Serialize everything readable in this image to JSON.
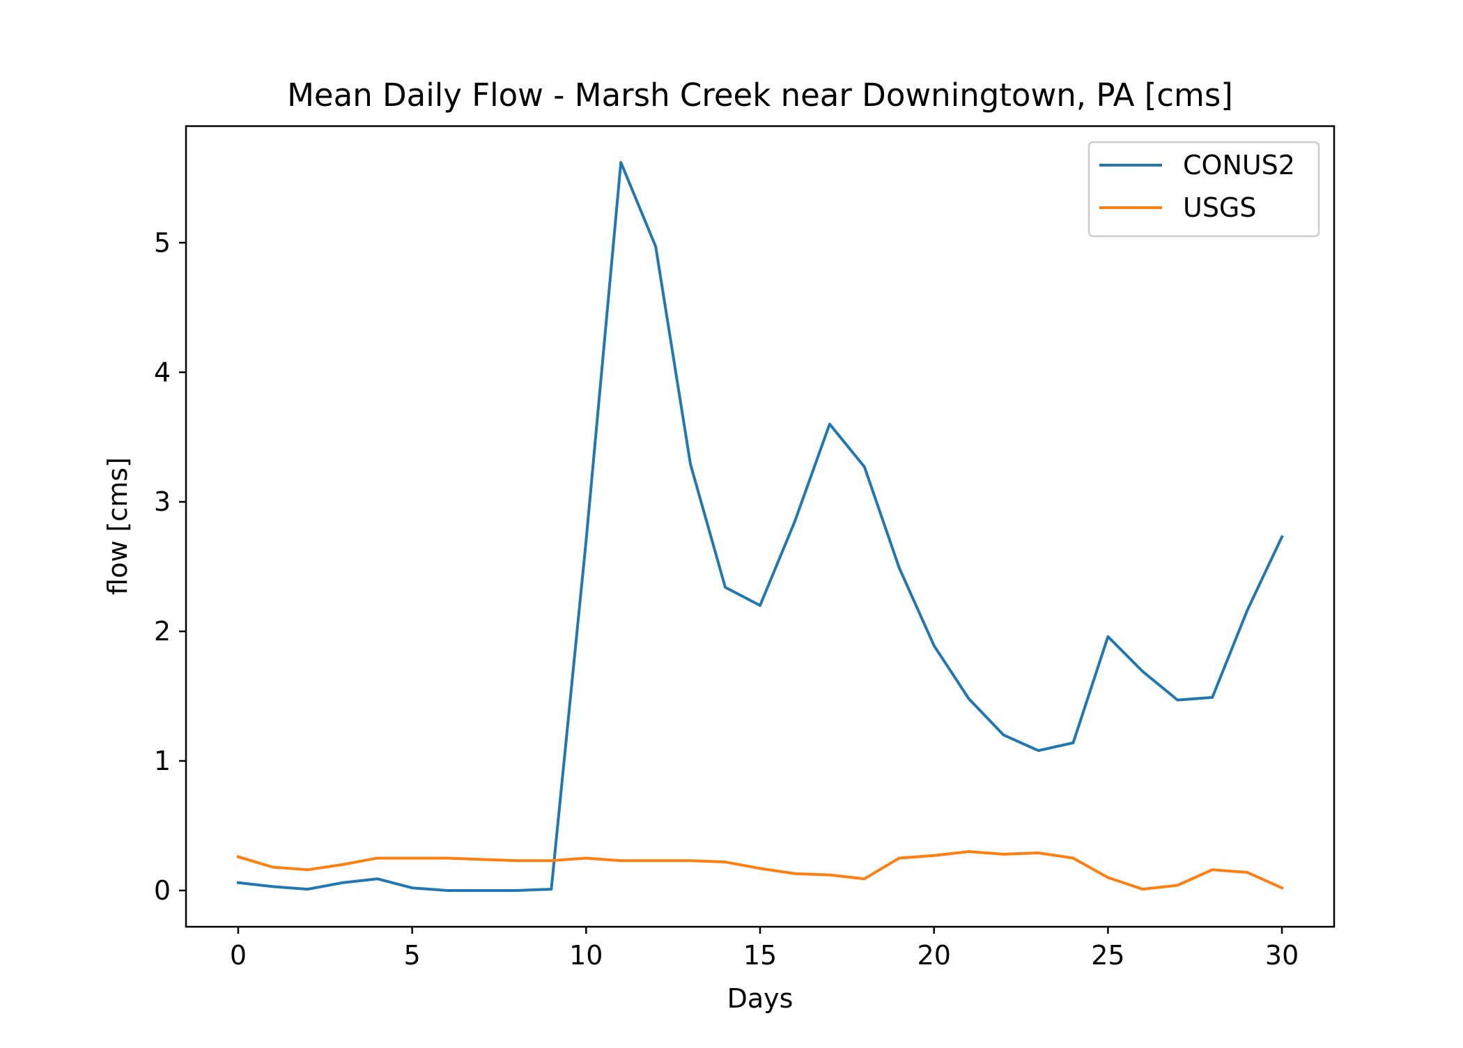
{
  "chart_data": {
    "type": "line",
    "title": "Mean Daily Flow - Marsh Creek near Downingtown, PA [cms]",
    "xlabel": "Days",
    "ylabel": "flow [cms]",
    "xlim": [
      -1.5,
      31.5
    ],
    "ylim": [
      -0.28,
      5.9
    ],
    "xticks": [
      0,
      5,
      10,
      15,
      20,
      25,
      30
    ],
    "xtick_labels": [
      "0",
      "5",
      "10",
      "15",
      "20",
      "25",
      "30"
    ],
    "yticks": [
      0,
      1,
      2,
      3,
      4,
      5
    ],
    "ytick_labels": [
      "0",
      "1",
      "2",
      "3",
      "4",
      "5"
    ],
    "grid": false,
    "legend_position": "top-right",
    "x": [
      0,
      1,
      2,
      3,
      4,
      5,
      6,
      7,
      8,
      9,
      10,
      11,
      12,
      13,
      14,
      15,
      16,
      17,
      18,
      19,
      20,
      21,
      22,
      23,
      24,
      25,
      26,
      27,
      28,
      29,
      30
    ],
    "series": [
      {
        "name": "CONUS2",
        "color": "#1f77b4",
        "values": [
          0.06,
          0.03,
          0.01,
          0.06,
          0.09,
          0.02,
          0.0,
          0.0,
          0.0,
          0.01,
          2.7,
          5.62,
          4.97,
          3.29,
          2.34,
          2.2,
          2.85,
          3.6,
          3.27,
          2.49,
          1.89,
          1.48,
          1.2,
          1.08,
          1.14,
          1.96,
          1.69,
          1.47,
          1.49,
          2.16,
          2.73
        ]
      },
      {
        "name": "USGS",
        "color": "#ff7f0e",
        "values": [
          0.26,
          0.18,
          0.16,
          0.2,
          0.25,
          0.25,
          0.25,
          0.24,
          0.23,
          0.23,
          0.25,
          0.23,
          0.23,
          0.23,
          0.22,
          0.17,
          0.13,
          0.12,
          0.09,
          0.25,
          0.27,
          0.3,
          0.28,
          0.29,
          0.25,
          0.1,
          0.01,
          0.04,
          0.16,
          0.14,
          0.02
        ]
      }
    ]
  }
}
